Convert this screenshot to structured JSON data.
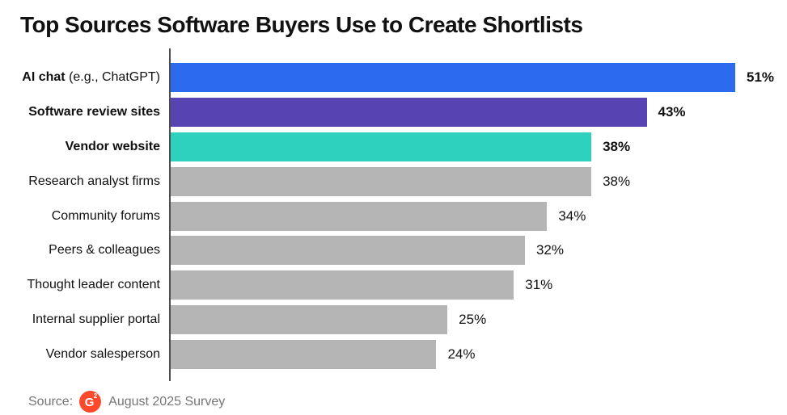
{
  "title": "Top Sources Software Buyers Use to Create Shortlists",
  "source": {
    "prefix": "Source:",
    "logo_g": "G",
    "logo_2": "2",
    "text": "August 2025 Survey"
  },
  "colors": {
    "blue": "#2D6BEE",
    "purple": "#5843B2",
    "teal": "#2ED0BE",
    "gray": "#B5B5B5",
    "axis": "#4d4d4d",
    "g2_red": "#FF492C",
    "text": "#111111",
    "source_text": "#757575"
  },
  "chart_data": {
    "type": "bar",
    "orientation": "horizontal",
    "title": "Top Sources Software Buyers Use to Create Shortlists",
    "xlabel": "",
    "ylabel": "",
    "xlim": [
      0,
      51
    ],
    "grid": false,
    "legend": false,
    "unit": "%",
    "categories": [
      "AI chat (e.g., ChatGPT)",
      "Software review sites",
      "Vendor website",
      "Research analyst firms",
      "Community forums",
      "Peers & colleagues",
      "Thought leader content",
      "Internal supplier portal",
      "Vendor salesperson"
    ],
    "values": [
      51,
      43,
      38,
      38,
      34,
      32,
      31,
      25,
      24
    ],
    "bars": [
      {
        "label_bold": "AI chat",
        "label_normal": " (e.g., ChatGPT)",
        "value": 51,
        "display": "51%",
        "color": "#2D6BEE",
        "highlighted": true
      },
      {
        "label_bold": "Software review sites",
        "label_normal": "",
        "value": 43,
        "display": "43%",
        "color": "#5843B2",
        "highlighted": true
      },
      {
        "label_bold": "Vendor website",
        "label_normal": "",
        "value": 38,
        "display": "38%",
        "color": "#2ED0BE",
        "highlighted": true
      },
      {
        "label_bold": "",
        "label_normal": "Research analyst firms",
        "value": 38,
        "display": "38%",
        "color": "#B5B5B5",
        "highlighted": false
      },
      {
        "label_bold": "",
        "label_normal": "Community forums",
        "value": 34,
        "display": "34%",
        "color": "#B5B5B5",
        "highlighted": false
      },
      {
        "label_bold": "",
        "label_normal": "Peers & colleagues",
        "value": 32,
        "display": "32%",
        "color": "#B5B5B5",
        "highlighted": false
      },
      {
        "label_bold": "",
        "label_normal": "Thought leader content",
        "value": 31,
        "display": "31%",
        "color": "#B5B5B5",
        "highlighted": false
      },
      {
        "label_bold": "",
        "label_normal": "Internal supplier portal",
        "value": 25,
        "display": "25%",
        "color": "#B5B5B5",
        "highlighted": false
      },
      {
        "label_bold": "",
        "label_normal": "Vendor salesperson",
        "value": 24,
        "display": "24%",
        "color": "#B5B5B5",
        "highlighted": false
      }
    ]
  }
}
